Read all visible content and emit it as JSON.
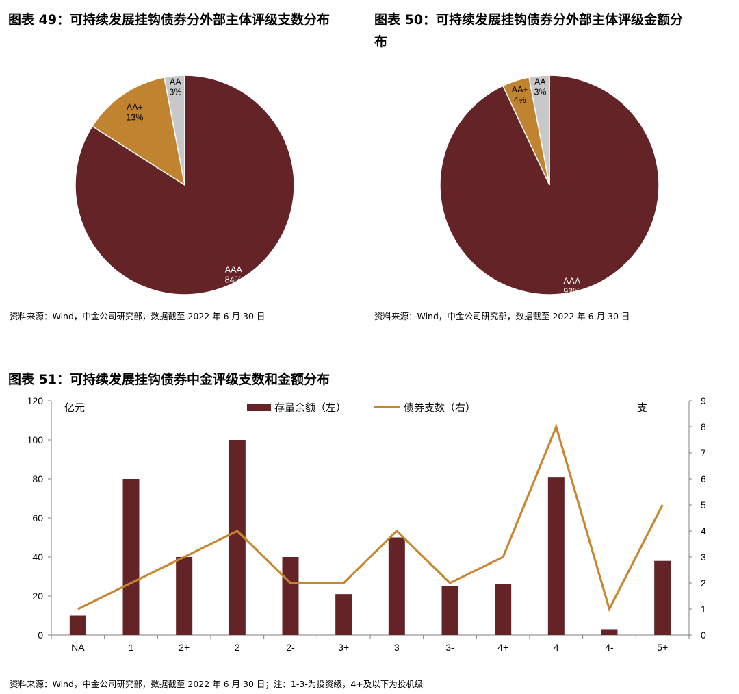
{
  "titles": {
    "fig49": "图表 49：可持续发展挂钩债券分外部主体评级支数分布",
    "fig50_line1": "图表 50：可持续发展挂钩债券分外部主体评级金额分",
    "fig50_line2": "布",
    "fig51": "图表 51：可持续发展挂钩债券中金评级支数和金额分布"
  },
  "sources": {
    "fig49": "资料来源：Wind，中金公司研究部，数据截至 2022 年 6 月 30 日",
    "fig50": "资料来源：Wind，中金公司研究部，数据截至 2022 年 6 月 30 日",
    "fig51": "资料来源：Wind，中金公司研究部，数据截至 2022 年 6 月 30 日；注：1-3-为投资级，4+及以下为投机级"
  },
  "colors": {
    "aaa": "#642427",
    "aa_plus": "#C08430",
    "aa": "#C8C8C8",
    "bar": "#642427",
    "line": "#C8872E"
  },
  "chart_data": [
    {
      "type": "pie",
      "title": "图表 49：可持续发展挂钩债券分外部主体评级支数分布",
      "slices": [
        {
          "label": "AAA",
          "pct_label": "84%",
          "value": 84
        },
        {
          "label": "AA+",
          "pct_label": "13%",
          "value": 13
        },
        {
          "label": "AA",
          "pct_label": "3%",
          "value": 3
        }
      ]
    },
    {
      "type": "pie",
      "title": "图表 50：可持续发展挂钩债券分外部主体评级金额分布",
      "slices": [
        {
          "label": "AAA",
          "pct_label": "93%",
          "value": 93
        },
        {
          "label": "AA+",
          "pct_label": "4%",
          "value": 4
        },
        {
          "label": "AA",
          "pct_label": "3%",
          "value": 3
        }
      ]
    },
    {
      "type": "bar",
      "title": "图表 51：可持续发展挂钩债券中金评级支数和金额分布",
      "categories": [
        "NA",
        "1",
        "2+",
        "2",
        "2-",
        "3+",
        "3",
        "3-",
        "4+",
        "4",
        "4-",
        "5+"
      ],
      "series": [
        {
          "name": "存量余额（左）",
          "type": "bar",
          "axis": "left",
          "values": [
            10,
            80,
            40,
            100,
            40,
            21,
            50,
            25,
            26,
            81,
            3,
            38
          ]
        },
        {
          "name": "债券支数（右）",
          "type": "line",
          "axis": "right",
          "values": [
            1,
            2,
            3,
            4,
            2,
            2,
            4,
            2,
            3,
            8,
            1,
            5
          ]
        }
      ],
      "ylabel_left": "亿元",
      "ylabel_right": "支",
      "ylim_left": [
        0,
        120
      ],
      "ylim_right": [
        0,
        9
      ],
      "yticks_left": [
        "0",
        "20",
        "40",
        "60",
        "80",
        "100",
        "120"
      ],
      "yticks_right": [
        "0",
        "1",
        "2",
        "3",
        "4",
        "5",
        "6",
        "7",
        "8",
        "9"
      ],
      "grid": false,
      "legend": "top-center"
    }
  ]
}
